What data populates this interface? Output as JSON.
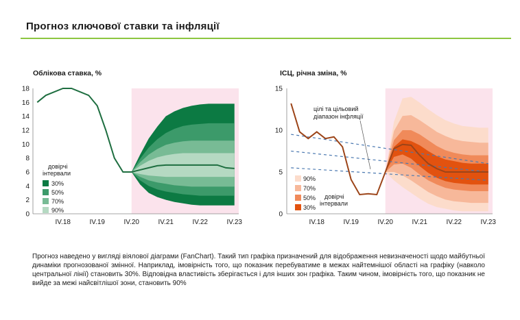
{
  "page": {
    "title": "Прогноз ключової ставки та інфляції",
    "caption": "Прогноз наведено у вигляді віялової діаграми (FanChart). Такий тип графіка призначений для відображення невизначеності щодо майбутньої динаміки прогнозованої змінної. Наприклад, імовірність того, що показник перебуватиме в межах найтемнішої області на графіку (навколо центральної лінії) становить 30%. Відповідна властивість зберігається і для інших зон графіка. Таким чином, імовірність того, що показник не вийде за межі найсвітлішої зони, становить 90%"
  },
  "colors": {
    "title_rule": "#8cc63f",
    "forecast_shade": "#fbe3ec",
    "rate_line": "#1e6e40",
    "rate_fan": [
      "#0c7a43",
      "#3c9a6a",
      "#78bb95",
      "#b5d9c2"
    ],
    "cpi_line": "#9c4418",
    "cpi_fan": [
      "#e2520f",
      "#f08a5a",
      "#f7b89a",
      "#fcdccb"
    ],
    "target_dash": "#4a78b0"
  },
  "chart_data": [
    {
      "type": "line",
      "title": "Облікова ставка, %",
      "ylim": [
        0,
        18
      ],
      "yticks": [
        "0",
        "2",
        "4",
        "6",
        "8",
        "10",
        "12",
        "14",
        "16",
        "18"
      ],
      "xticks": [
        "IV.18",
        "IV.19",
        "IV.20",
        "IV.21",
        "IV.22",
        "IV.23"
      ],
      "forecast_start": "IV.20",
      "series": [
        {
          "x": [
            "I.18",
            "II.18",
            "III.18",
            "IV.18",
            "I.19",
            "II.19",
            "III.19",
            "IV.19",
            "I.20",
            "II.20",
            "III.20",
            "IV.20",
            "I.21",
            "II.21",
            "III.21",
            "IV.21",
            "I.22",
            "II.22",
            "III.22",
            "IV.22",
            "I.23",
            "II.23",
            "III.23",
            "IV.23"
          ],
          "values": [
            16,
            17,
            17.5,
            18,
            18,
            17.5,
            17,
            15.5,
            12,
            8,
            6,
            6,
            6.3,
            6.6,
            6.9,
            7,
            7,
            7,
            7,
            7,
            7,
            7,
            6.6,
            6.5
          ]
        }
      ],
      "fan_bands": [
        {
          "level": "90%",
          "lower": [
            6,
            4.2,
            3,
            2.4,
            2,
            1.7,
            1.5,
            1.3,
            1.2,
            1.2,
            1.2,
            1.2,
            1.2
          ],
          "upper": [
            6,
            8.5,
            10.8,
            12.5,
            14,
            14.7,
            15.2,
            15.5,
            15.7,
            15.8,
            15.8,
            15.8,
            15.8
          ]
        },
        {
          "level": "70%",
          "lower": [
            6,
            4.8,
            4,
            3.5,
            3.2,
            3,
            2.8,
            2.7,
            2.6,
            2.6,
            2.6,
            2.6,
            2.6
          ],
          "upper": [
            6,
            7.9,
            9.5,
            10.7,
            11.6,
            12.2,
            12.6,
            12.8,
            12.9,
            13,
            13,
            13,
            13
          ]
        },
        {
          "level": "50%",
          "lower": [
            6,
            5.3,
            4.8,
            4.5,
            4.3,
            4.1,
            4,
            3.9,
            3.9,
            3.9,
            3.9,
            3.9,
            3.9
          ],
          "upper": [
            6,
            7.4,
            8.5,
            9.3,
            9.9,
            10.2,
            10.4,
            10.5,
            10.5,
            10.5,
            10.5,
            10.5,
            10.5
          ]
        },
        {
          "level": "30%",
          "lower": [
            6,
            5.7,
            5.5,
            5.4,
            5.3,
            5.3,
            5.3,
            5.3,
            5.3,
            5.3,
            5.3,
            5.3,
            5.3
          ],
          "upper": [
            6,
            6.9,
            7.6,
            8.1,
            8.4,
            8.6,
            8.7,
            8.7,
            8.7,
            8.7,
            8.7,
            8.7,
            8.7
          ]
        }
      ],
      "legend": {
        "title": "довірчі інтервали",
        "entries": [
          "30%",
          "50%",
          "70%",
          "90%"
        ],
        "placement": "bottom-left"
      }
    },
    {
      "type": "line",
      "title": "ІСЦ, річна зміна, %",
      "ylim": [
        0,
        15
      ],
      "yticks": [
        "0",
        "5",
        "10",
        "15"
      ],
      "xticks": [
        "IV.18",
        "IV.19",
        "IV.20",
        "IV.21",
        "IV.22",
        "IV.23"
      ],
      "forecast_start": "IV.20",
      "series": [
        {
          "x": [
            "I.18",
            "II.18",
            "III.18",
            "IV.18",
            "I.19",
            "II.19",
            "III.19",
            "IV.19",
            "I.20",
            "II.20",
            "III.20",
            "IV.20",
            "I.21",
            "II.21",
            "III.21",
            "IV.21",
            "I.22",
            "II.22",
            "III.22",
            "IV.22",
            "I.23",
            "II.23",
            "III.23",
            "IV.23"
          ],
          "values": [
            13.2,
            9.8,
            9,
            9.8,
            9,
            9.2,
            8,
            4.1,
            2.3,
            2.4,
            2.3,
            5,
            7.8,
            8.3,
            8.2,
            7,
            6,
            5.4,
            5,
            5,
            5,
            5,
            5,
            5
          ]
        }
      ],
      "fan_bands": [
        {
          "level": "90%",
          "lower": [
            5,
            4,
            3.2,
            2.5,
            1.8,
            1.2,
            0.8,
            0.6,
            0.4,
            0.3,
            0.3,
            0.3,
            0.3
          ],
          "upper": [
            5,
            11,
            13.8,
            14,
            13.3,
            12.5,
            11.8,
            11.2,
            10.8,
            10.5,
            10.4,
            10.3,
            10.3
          ]
        },
        {
          "level": "70%",
          "lower": [
            5,
            5,
            4.6,
            4,
            3.3,
            2.6,
            2.1,
            1.7,
            1.5,
            1.4,
            1.3,
            1.3,
            1.3
          ],
          "upper": [
            5,
            9.9,
            11.7,
            11.8,
            11.2,
            10.5,
            9.8,
            9.3,
            8.9,
            8.7,
            8.6,
            8.5,
            8.5
          ]
        },
        {
          "level": "50%",
          "lower": [
            5,
            5.9,
            6,
            5.5,
            4.7,
            4,
            3.5,
            3.1,
            2.9,
            2.8,
            2.7,
            2.7,
            2.7
          ],
          "upper": [
            5,
            8.8,
            10,
            10,
            9.5,
            8.8,
            8.1,
            7.6,
            7.3,
            7.1,
            7,
            7,
            7
          ]
        },
        {
          "level": "30%",
          "lower": [
            5,
            6.8,
            7.1,
            6.6,
            5.7,
            4.9,
            4.3,
            3.9,
            3.7,
            3.6,
            3.5,
            3.5,
            3.5
          ],
          "upper": [
            5,
            8,
            8.9,
            8.7,
            8.2,
            7.5,
            6.9,
            6.5,
            6.3,
            6.1,
            6,
            6,
            6
          ]
        }
      ],
      "target_band": {
        "label": "цілі та цільовий діапазон інфляції",
        "lines": [
          {
            "x": [
              "I.18",
              "IV.23"
            ],
            "values": [
              9.5,
              6
            ]
          },
          {
            "x": [
              "I.18",
              "IV.23"
            ],
            "values": [
              7.5,
              5
            ]
          },
          {
            "x": [
              "I.18",
              "IV.23"
            ],
            "values": [
              5.5,
              4
            ]
          }
        ]
      },
      "legend": {
        "title": "довірчі інтервали",
        "entries": [
          "90%",
          "70%",
          "50%",
          "30%"
        ],
        "placement": "bottom-left"
      }
    }
  ]
}
